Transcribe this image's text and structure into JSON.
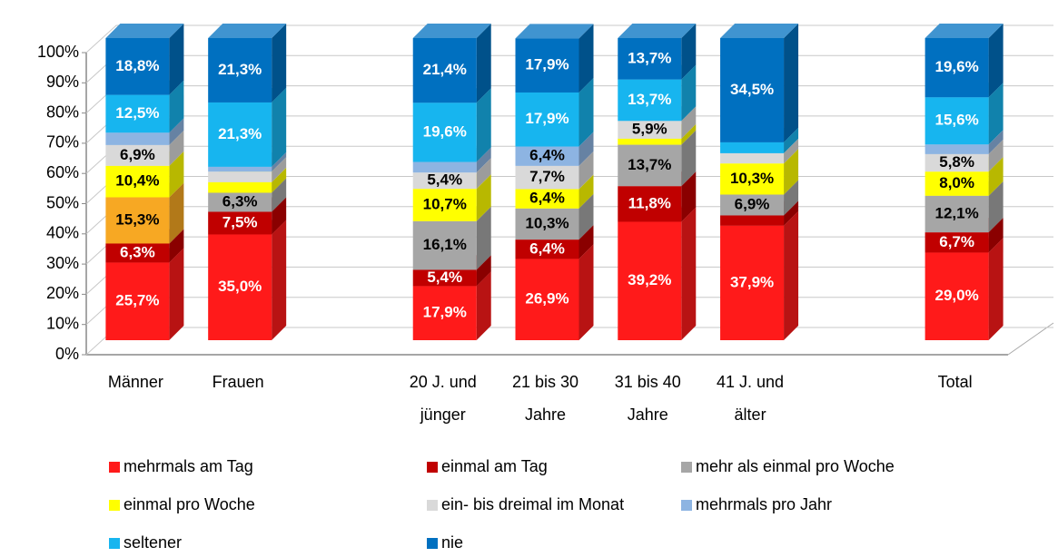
{
  "chart_data": {
    "type": "stacked_bar_3d",
    "categories": [
      "Männer",
      "Frauen",
      null,
      "20 J. und\njünger",
      "21 bis 30\nJahre",
      "31 bis 40\nJahre",
      "41 J. und\nälter",
      null,
      "Total"
    ],
    "ylim": [
      0,
      100
    ],
    "yticks": [
      {
        "value": 0,
        "label": "0%"
      },
      {
        "value": 10,
        "label": "10%"
      },
      {
        "value": 20,
        "label": "20%"
      },
      {
        "value": 30,
        "label": "30%"
      },
      {
        "value": 40,
        "label": "40%"
      },
      {
        "value": 50,
        "label": "50%"
      },
      {
        "value": 60,
        "label": "60%"
      },
      {
        "value": 70,
        "label": "70%"
      },
      {
        "value": 80,
        "label": "80%"
      },
      {
        "value": 90,
        "label": "90%"
      },
      {
        "value": 100,
        "label": "100%"
      }
    ],
    "grid": true,
    "legend": "bottom",
    "series": [
      {
        "name": "mehrmals am Tag",
        "color": "#ff1a1a",
        "label_color": "#ffffff",
        "values": [
          25.7,
          35.0,
          null,
          17.9,
          26.9,
          39.2,
          37.9,
          null,
          29.0
        ],
        "value_labels": [
          "25,7%",
          "35,0%",
          null,
          "17,9%",
          "26,9%",
          "39,2%",
          "37,9%",
          null,
          "29,0%"
        ]
      },
      {
        "name": "einmal am Tag",
        "color": "#c00000",
        "label_color": "#ffffff",
        "values": [
          6.3,
          7.5,
          null,
          5.4,
          6.4,
          11.8,
          3.4,
          null,
          6.7
        ],
        "value_labels": [
          "6,3%",
          "7,5%",
          null,
          "5,4%",
          "6,4%",
          "11,8%",
          null,
          null,
          "6,7%"
        ]
      },
      {
        "name": "mehr als einmal pro Woche",
        "color": "#a6a6a6",
        "label_color": "#000000",
        "colors": [
          "#f7a823",
          "#a6a6a6",
          null,
          "#a6a6a6",
          "#a6a6a6",
          "#a6a6a6",
          "#a6a6a6",
          null,
          "#a6a6a6"
        ],
        "values": [
          15.3,
          6.3,
          null,
          16.1,
          10.3,
          13.7,
          6.9,
          null,
          12.1
        ],
        "value_labels": [
          "15,3%",
          "6,3%",
          null,
          "16,1%",
          "10,3%",
          "13,7%",
          "6,9%",
          null,
          "12,1%"
        ]
      },
      {
        "name": "einmal pro Woche",
        "color": "#ffff00",
        "label_color": "#000000",
        "values": [
          10.4,
          3.5,
          null,
          10.7,
          6.4,
          2.0,
          10.3,
          null,
          8.0
        ],
        "value_labels": [
          "10,4%",
          null,
          null,
          "10,7%",
          "6,4%",
          null,
          "10,3%",
          null,
          "8,0%"
        ]
      },
      {
        "name": "ein- bis dreimal im Monat",
        "color": "#d9d9d9",
        "label_color": "#000000",
        "values": [
          6.9,
          3.5,
          null,
          5.4,
          7.7,
          5.9,
          3.4,
          null,
          5.8
        ],
        "value_labels": [
          "6,9%",
          null,
          null,
          "5,4%",
          "7,7%",
          "5,9%",
          null,
          null,
          "5,8%"
        ]
      },
      {
        "name": "mehrmals pro Jahr",
        "color": "#8db4e2",
        "label_color": "#000000",
        "values": [
          4.1,
          1.6,
          null,
          3.5,
          6.4,
          0,
          0,
          null,
          3.2
        ],
        "value_labels": [
          null,
          null,
          null,
          null,
          "6,4%",
          null,
          null,
          null,
          null
        ]
      },
      {
        "name": "seltener",
        "color": "#17b5ef",
        "label_color": "#ffffff",
        "values": [
          12.5,
          21.3,
          null,
          19.6,
          17.9,
          13.7,
          3.6,
          null,
          15.6
        ],
        "value_labels": [
          "12,5%",
          "21,3%",
          null,
          "19,6%",
          "17,9%",
          "13,7%",
          null,
          null,
          "15,6%"
        ]
      },
      {
        "name": "nie",
        "color": "#0070c0",
        "label_color": "#ffffff",
        "values": [
          18.8,
          21.3,
          null,
          21.4,
          17.9,
          13.7,
          34.5,
          null,
          19.6
        ],
        "value_labels": [
          "18,8%",
          "21,3%",
          null,
          "21,4%",
          "17,9%",
          "13,7%",
          "34,5%",
          null,
          "19,6%"
        ]
      }
    ]
  }
}
